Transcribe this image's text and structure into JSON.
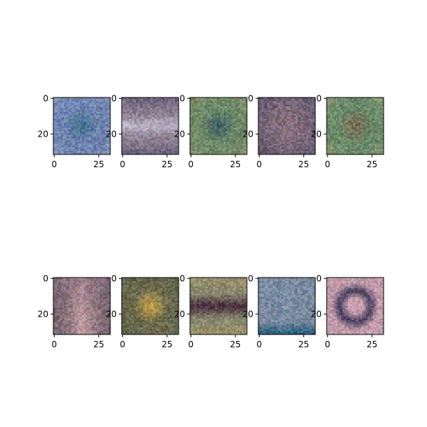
{
  "chart_data": {
    "type": "heatmap",
    "grid": false,
    "image_size": [
      32,
      32
    ],
    "xticks": [
      "0",
      "25"
    ],
    "yticks": [
      "0",
      "20"
    ],
    "panels": [
      {
        "base": "#6f84b0",
        "center": "#3d6f8c",
        "edge": "#9aa7c8",
        "pattern": "spot"
      },
      {
        "base": "#8a7c8e",
        "center": "#b9b3c6",
        "edge": "#3f4060",
        "pattern": "band"
      },
      {
        "base": "#6f8a68",
        "center": "#3f5f6a",
        "edge": "#9a9a72",
        "pattern": "spot"
      },
      {
        "base": "#7c6a7a",
        "center": "#8e7580",
        "edge": "#5b5168",
        "pattern": "vignette"
      },
      {
        "base": "#6b8a6a",
        "center": "#7a6a52",
        "edge": "#a9a97a",
        "pattern": "spot"
      },
      {
        "base": "#86707a",
        "center": "#c9a3a8",
        "edge": "#5d4f57",
        "pattern": "vertical"
      },
      {
        "base": "#6a6a4e",
        "center": "#c9a54e",
        "edge": "#4d5a46",
        "pattern": "spot"
      },
      {
        "base": "#8a8a70",
        "center": "#4a3040",
        "edge": "#b09a60",
        "pattern": "band"
      },
      {
        "base": "#7a8aa0",
        "center": "#8090a8",
        "edge": "#1f5a78",
        "pattern": "bottom"
      },
      {
        "base": "#c09aa8",
        "center": "#4a4060",
        "edge": "#d6aabb",
        "pattern": "ring"
      }
    ]
  }
}
